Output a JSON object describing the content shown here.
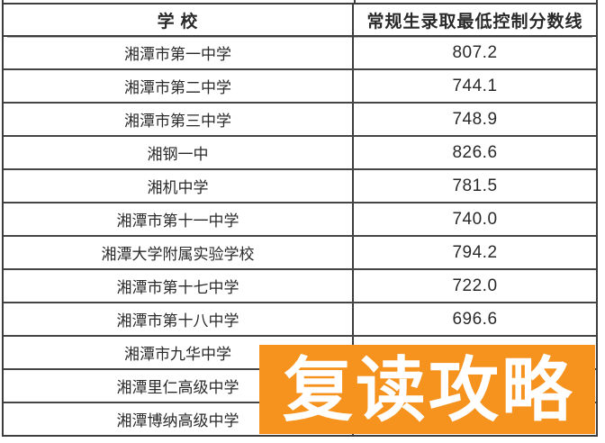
{
  "table": {
    "header": {
      "school": "学  校",
      "score": "常规生录取最低控制分数线"
    },
    "rows": [
      {
        "school": "湘潭市第一中学",
        "score": "807.2"
      },
      {
        "school": "湘潭市第二中学",
        "score": "744.1"
      },
      {
        "school": "湘潭市第三中学",
        "score": "748.9"
      },
      {
        "school": "湘钢一中",
        "score": "826.6"
      },
      {
        "school": "湘机中学",
        "score": "781.5"
      },
      {
        "school": "湘潭市第十一中学",
        "score": "740.0"
      },
      {
        "school": "湘潭大学附属实验学校",
        "score": "794.2"
      },
      {
        "school": "湘潭市第十七中学",
        "score": "722.0"
      },
      {
        "school": "湘潭市第十八中学",
        "score": "696.6"
      },
      {
        "school": "湘潭市九华中学",
        "score": ""
      },
      {
        "school": "湘潭里仁高级中学",
        "score": ""
      },
      {
        "school": "湘潭博纳高级中学",
        "score": ""
      }
    ]
  },
  "banner": {
    "label": "复读攻略",
    "background": "#f6921e",
    "text_color": "#ffffff"
  },
  "colors": {
    "line": "#3d3d3d",
    "text": "#2a2a2a"
  }
}
